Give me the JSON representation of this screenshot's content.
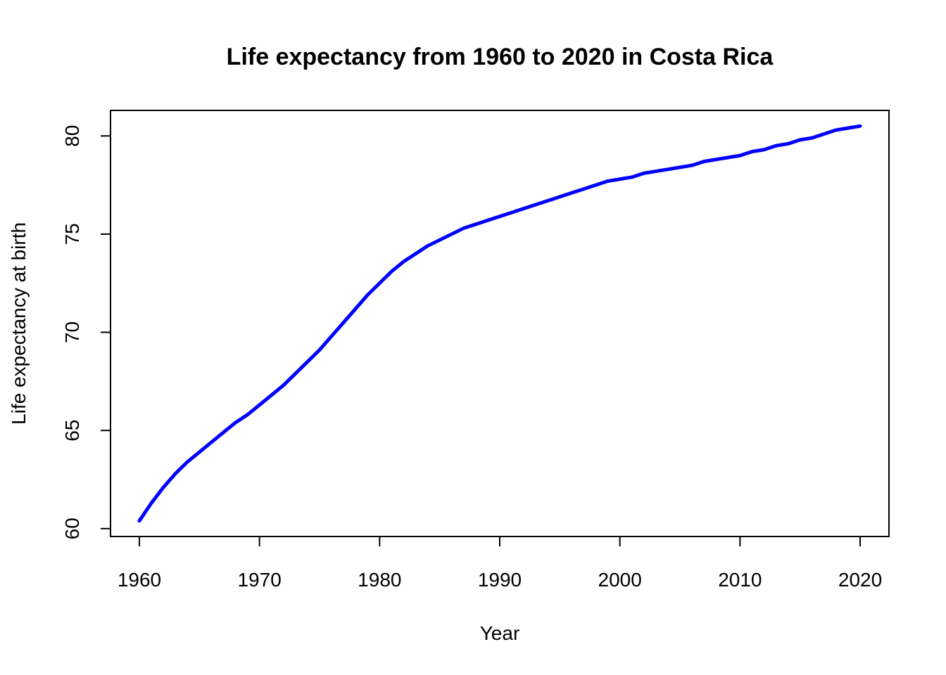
{
  "chart_data": {
    "type": "line",
    "title": "Life expectancy from 1960 to 2020 in Costa Rica",
    "xlabel": "Year",
    "ylabel": "Life expectancy at birth",
    "xlim": [
      1957.6,
      2022.4
    ],
    "ylim": [
      59.6,
      81.3
    ],
    "x_ticks": [
      1960,
      1970,
      1980,
      1990,
      2000,
      2010,
      2020
    ],
    "y_ticks": [
      60,
      65,
      70,
      75,
      80
    ],
    "grid": false,
    "legend": "none",
    "series": [
      {
        "color": "#0000ff",
        "x": [
          1960,
          1961,
          1962,
          1963,
          1964,
          1965,
          1966,
          1967,
          1968,
          1969,
          1970,
          1971,
          1972,
          1973,
          1974,
          1975,
          1976,
          1977,
          1978,
          1979,
          1980,
          1981,
          1982,
          1983,
          1984,
          1985,
          1986,
          1987,
          1988,
          1989,
          1990,
          1991,
          1992,
          1993,
          1994,
          1995,
          1996,
          1997,
          1998,
          1999,
          2000,
          2001,
          2002,
          2003,
          2004,
          2005,
          2006,
          2007,
          2008,
          2009,
          2010,
          2011,
          2012,
          2013,
          2014,
          2015,
          2016,
          2017,
          2018,
          2019,
          2020
        ],
        "values": [
          60.4,
          61.3,
          62.1,
          62.8,
          63.4,
          63.9,
          64.4,
          64.9,
          65.4,
          65.8,
          66.3,
          66.8,
          67.3,
          67.9,
          68.5,
          69.1,
          69.8,
          70.5,
          71.2,
          71.9,
          72.5,
          73.1,
          73.6,
          74.0,
          74.4,
          74.7,
          75.0,
          75.3,
          75.5,
          75.7,
          75.9,
          76.1,
          76.3,
          76.5,
          76.7,
          76.9,
          77.1,
          77.3,
          77.5,
          77.7,
          77.8,
          77.9,
          78.1,
          78.2,
          78.3,
          78.4,
          78.5,
          78.7,
          78.8,
          78.9,
          79.0,
          79.2,
          79.3,
          79.5,
          79.6,
          79.8,
          79.9,
          80.1,
          80.3,
          80.4,
          80.5
        ]
      }
    ]
  }
}
